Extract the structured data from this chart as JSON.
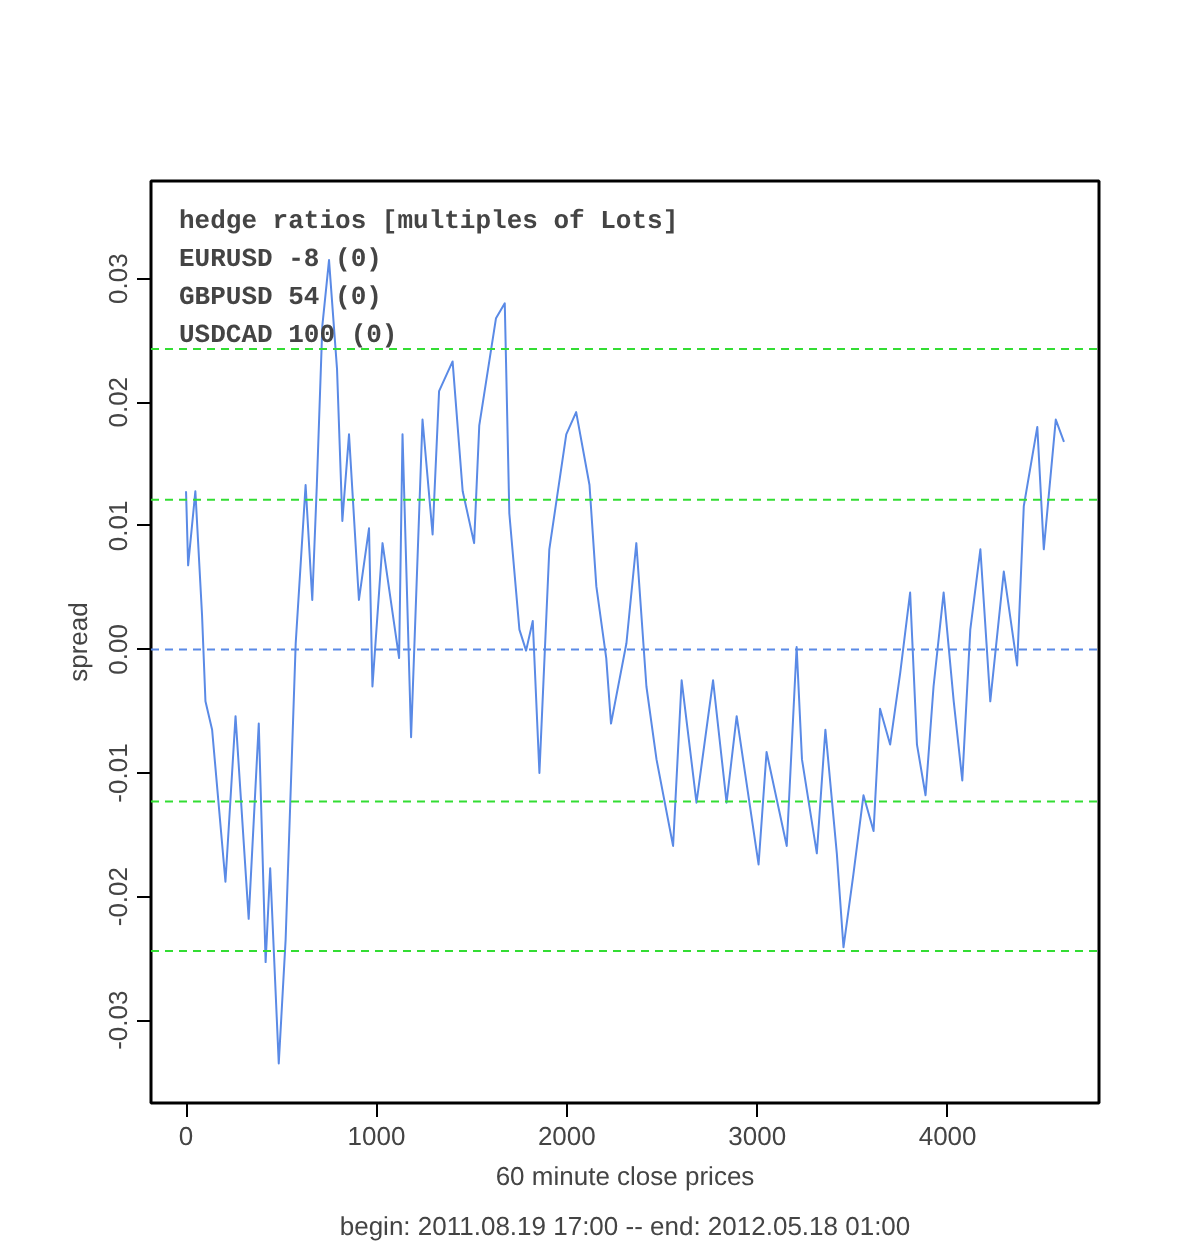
{
  "chart_data": {
    "type": "line",
    "xlabel": "60 minute close prices",
    "subtitle": "begin: 2011.08.19 17:00 -- end: 2012.05.18 01:00",
    "ylabel": "spread",
    "annotations": [
      "hedge ratios [multiples of Lots]",
      "EURUSD -8 (0)",
      "GBPUSD 54 (0)",
      "USDCAD 100 (0)"
    ],
    "x": [
      0,
      11,
      49,
      84,
      102,
      137,
      207,
      260,
      329,
      382,
      418,
      442,
      487,
      523,
      576,
      628,
      663,
      687,
      716,
      751,
      793,
      821,
      856,
      908,
      961,
      979,
      1032,
      1119,
      1137,
      1182,
      1242,
      1295,
      1329,
      1400,
      1453,
      1513,
      1540,
      1628,
      1674,
      1698,
      1751,
      1786,
      1821,
      1856,
      1908,
      1997,
      2049,
      2119,
      2155,
      2207,
      2232,
      2313,
      2365,
      2418,
      2471,
      2558,
      2603,
      2681,
      2768,
      2839,
      2892,
      3007,
      3049,
      3155,
      3207,
      3235,
      3313,
      3358,
      3418,
      3453,
      3505,
      3558,
      3611,
      3645,
      3698,
      3751,
      3803,
      3839,
      3884,
      3926,
      3979,
      4032,
      4077,
      4119,
      4172,
      4224,
      4295,
      4365,
      4400,
      4471,
      4505,
      4568,
      4611
    ],
    "series": [
      {
        "color": "#5a8ae6",
        "values": [
          0.0128,
          0.0068,
          0.0128,
          0.0028,
          -0.0042,
          -0.0065,
          -0.0188,
          -0.0054,
          -0.0218,
          -0.006,
          -0.0253,
          -0.0177,
          -0.0335,
          -0.0235,
          0.0005,
          0.0133,
          0.004,
          0.0133,
          0.0262,
          0.0315,
          0.0227,
          0.0104,
          0.0174,
          0.004,
          0.0098,
          -0.003,
          0.0086,
          -0.0007,
          0.0174,
          -0.0071,
          0.0186,
          0.0093,
          0.0209,
          0.0233,
          0.0128,
          0.0086,
          0.0181,
          0.0268,
          0.028,
          0.011,
          0.0016,
          -0.0001,
          0.0023,
          -0.01,
          0.0081,
          0.0174,
          0.0192,
          0.0133,
          0.0051,
          -0.0007,
          -0.006,
          0.0005,
          0.0086,
          -0.003,
          -0.0089,
          -0.0159,
          -0.0025,
          -0.0124,
          -0.0025,
          -0.0124,
          -0.0054,
          -0.0174,
          -0.0083,
          -0.0159,
          0.0002,
          -0.0089,
          -0.0165,
          -0.0065,
          -0.0165,
          -0.0241,
          -0.0182,
          -0.0118,
          -0.0147,
          -0.0048,
          -0.0077,
          -0.0019,
          0.0046,
          -0.0077,
          -0.0118,
          -0.003,
          0.0046,
          -0.0042,
          -0.0106,
          0.0016,
          0.0081,
          -0.0042,
          0.0063,
          -0.0013,
          0.0116,
          0.018,
          0.0081,
          0.0186,
          0.0168
        ]
      }
    ],
    "xlim": [
      -184,
      4795
    ],
    "ylim": [
      -0.0367,
      0.0379
    ],
    "xticks": [
      0,
      1000,
      2000,
      3000,
      4000
    ],
    "yticks": [
      {
        "value": -0.03,
        "label": "-0.03"
      },
      {
        "value": -0.02,
        "label": "-0.02"
      },
      {
        "value": -0.01,
        "label": "-0.01"
      },
      {
        "value": 0,
        "label": "0.00"
      },
      {
        "value": 0.01,
        "label": "0.01"
      },
      {
        "value": 0.02,
        "label": "0.02"
      },
      {
        "value": 0.03,
        "label": "0.03"
      }
    ],
    "ref_lines": [
      {
        "axis": "y",
        "value": 0.0243,
        "color": "#33dd33",
        "line_style": "dashed"
      },
      {
        "axis": "y",
        "value": 0.0121,
        "color": "#33dd33",
        "line_style": "dashed"
      },
      {
        "axis": "y",
        "value": 0,
        "color": "#5a8ae6",
        "line_style": "dashed"
      },
      {
        "axis": "y",
        "value": -0.0123,
        "color": "#33dd33",
        "line_style": "dashed"
      },
      {
        "axis": "y",
        "value": -0.0244,
        "color": "#33dd33",
        "line_style": "dashed"
      }
    ],
    "grid": false,
    "marker": "none",
    "line_style": "solid"
  }
}
